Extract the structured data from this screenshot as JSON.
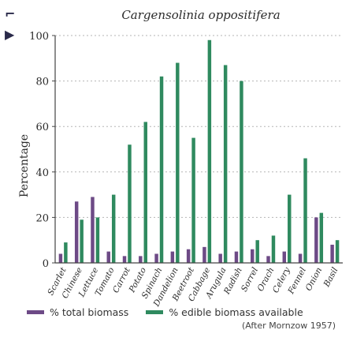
{
  "colors": {
    "total": "#6d4a86",
    "edible": "#2f8a5f",
    "grid": "#b5b5b5",
    "axis": "#444444",
    "text": "#2b2b2b"
  },
  "side_glyphs": [
    "⌐",
    "▶"
  ],
  "chart_data": {
    "type": "bar",
    "title": "Cargensolinia oppositifera",
    "ylabel": "Percentage",
    "xlabel": "",
    "ylim": [
      0,
      100
    ],
    "yticks": [
      0,
      20,
      40,
      60,
      80,
      100
    ],
    "grid": true,
    "legend_position": "bottom",
    "categories": [
      "Scarlet",
      "Chinese",
      "Lettuce",
      "Tomato",
      "Carrot",
      "Potato",
      "Spinach",
      "Dandelion",
      "Beetroot",
      "Cabbage",
      "Arugula",
      "Radish",
      "Sorrel",
      "Orach",
      "Celery",
      "Fennel",
      "Onion",
      "Basil"
    ],
    "series": [
      {
        "name": "% total biomass",
        "values": [
          4,
          27,
          29,
          5,
          3,
          3,
          4,
          5,
          6,
          7,
          4,
          5,
          6,
          3,
          5,
          4,
          20,
          8
        ]
      },
      {
        "name": "% edible biomass available",
        "values": [
          9,
          19,
          20,
          30,
          52,
          62,
          82,
          88,
          55,
          98,
          87,
          80,
          10,
          12,
          30,
          46,
          22,
          10
        ]
      }
    ],
    "source": "(After Mornzow 1957)"
  }
}
